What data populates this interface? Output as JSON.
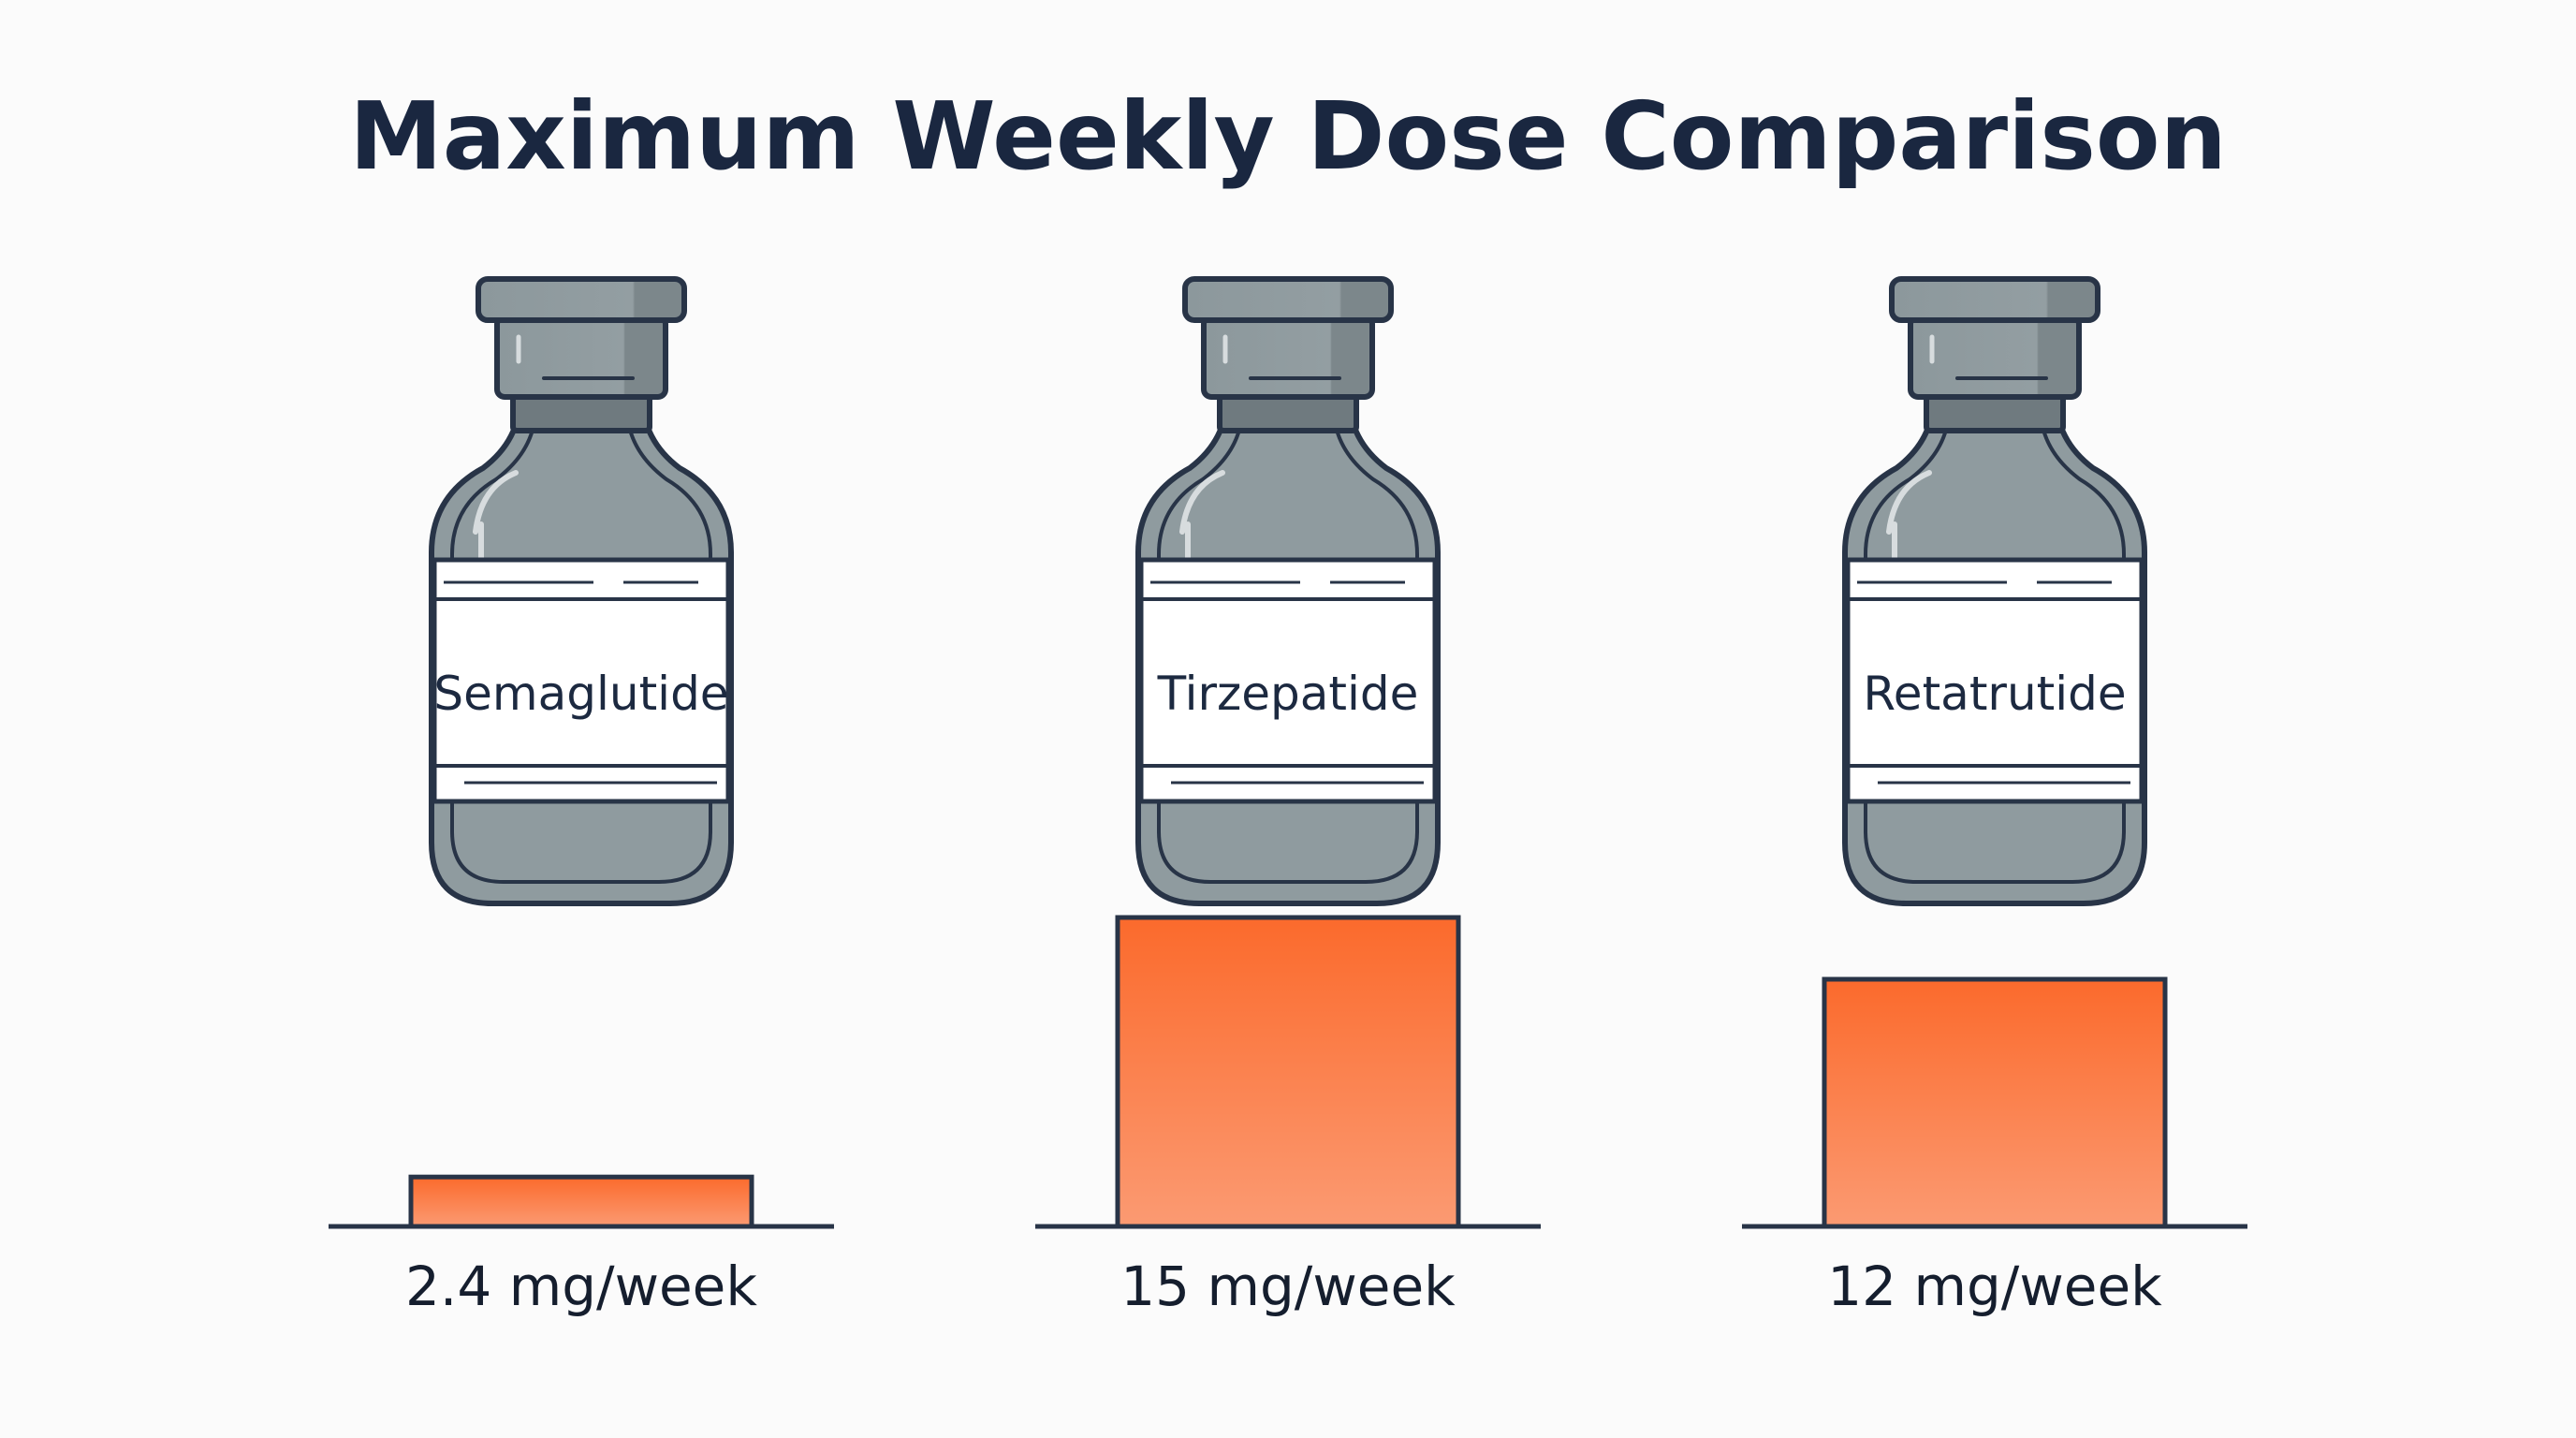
{
  "chart_data": {
    "type": "bar",
    "title": "Maximum Weekly Dose Comparison",
    "categories": [
      "Semaglutide",
      "Tirzepatide",
      "Retatrutide"
    ],
    "values": [
      2.4,
      15,
      12
    ],
    "value_labels": [
      "2.4 mg/week",
      "15 mg/week",
      "12 mg/week"
    ],
    "unit": "mg/week",
    "ylim": [
      0,
      15
    ],
    "grid": false,
    "legend": "none"
  },
  "colors": {
    "bar_top": "#fb6a2c",
    "bar_bottom": "#fb9a72",
    "outline": "#283447",
    "vial_body": "#8f9b9f",
    "vial_dark": "#6f7a7f",
    "label_bg": "#ffffff",
    "title": "#1a2740",
    "background": "#fbfbfb"
  },
  "icons": {
    "vial": "medicine-vial-icon"
  }
}
